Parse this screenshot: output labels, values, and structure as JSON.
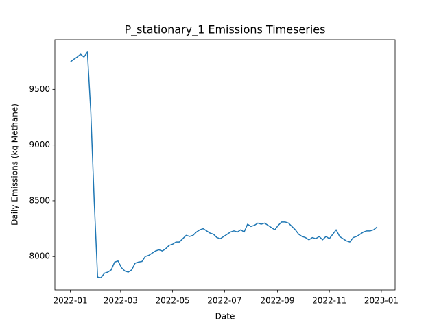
{
  "chart_data": {
    "type": "line",
    "title": "P_stationary_1 Emissions Timeseries",
    "x_label": "Date",
    "y_label": "Daily Emissions (kg Methane)",
    "x": [
      18993,
      18997,
      19001,
      19005,
      19009,
      19013,
      19017,
      19021,
      19025,
      19029,
      19033,
      19037,
      19041,
      19045,
      19049,
      19053,
      19057,
      19061,
      19065,
      19069,
      19073,
      19077,
      19081,
      19085,
      19089,
      19093,
      19097,
      19101,
      19105,
      19109,
      19113,
      19117,
      19121,
      19125,
      19129,
      19133,
      19137,
      19141,
      19145,
      19149,
      19153,
      19157,
      19161,
      19165,
      19169,
      19173,
      19177,
      19181,
      19185,
      19189,
      19193,
      19197,
      19201,
      19205,
      19209,
      19213,
      19217,
      19221,
      19225,
      19229,
      19233,
      19237,
      19241,
      19245,
      19249,
      19253,
      19257,
      19261,
      19265,
      19269,
      19273,
      19277,
      19281,
      19285,
      19289,
      19293,
      19297,
      19301,
      19305,
      19309,
      19313,
      19317,
      19321,
      19325,
      19329,
      19333,
      19337,
      19341,
      19345,
      19349,
      19353
    ],
    "series": [
      {
        "name": "P_stationary_1",
        "color": "#1f77b4",
        "values": [
          9745,
          9770,
          9790,
          9815,
          9790,
          9835,
          9300,
          8500,
          7815,
          7810,
          7850,
          7860,
          7880,
          7950,
          7960,
          7900,
          7870,
          7860,
          7880,
          7940,
          7950,
          7955,
          8000,
          8010,
          8030,
          8050,
          8060,
          8050,
          8070,
          8100,
          8110,
          8130,
          8130,
          8160,
          8190,
          8180,
          8190,
          8220,
          8240,
          8250,
          8230,
          8210,
          8200,
          8170,
          8160,
          8180,
          8200,
          8220,
          8230,
          8220,
          8240,
          8220,
          8290,
          8270,
          8280,
          8300,
          8290,
          8300,
          8280,
          8260,
          8240,
          8280,
          8310,
          8310,
          8300,
          8270,
          8240,
          8200,
          8180,
          8170,
          8150,
          8170,
          8160,
          8180,
          8150,
          8180,
          8160,
          8200,
          8240,
          8180,
          8160,
          8140,
          8130,
          8170,
          8180,
          8200,
          8220,
          8230,
          8230,
          8240,
          8265
        ]
      }
    ],
    "xlim": [
      18974.85,
      19374.15
    ],
    "xticks": [
      {
        "value": 18993,
        "label": "2022-01"
      },
      {
        "value": 19052,
        "label": "2022-03"
      },
      {
        "value": 19113,
        "label": "2022-05"
      },
      {
        "value": 19174,
        "label": "2022-07"
      },
      {
        "value": 19236,
        "label": "2022-09"
      },
      {
        "value": 19297,
        "label": "2022-11"
      },
      {
        "value": 19358,
        "label": "2023-01"
      }
    ],
    "ylim": [
      7700,
      9945
    ],
    "yticks": [
      8000,
      8500,
      9000,
      9500
    ],
    "grid": false
  }
}
